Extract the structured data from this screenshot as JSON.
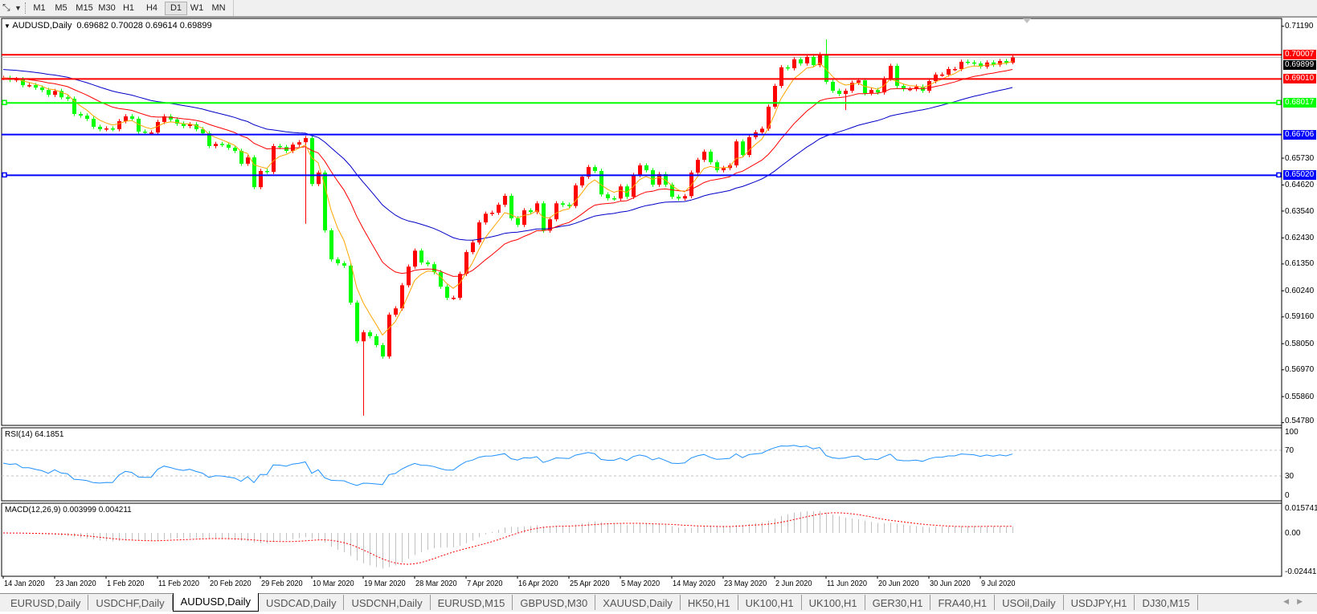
{
  "toolbar": {
    "timeframes": [
      "M1",
      "M5",
      "M15",
      "M30",
      "H1",
      "H4",
      "D1",
      "W1",
      "MN"
    ],
    "active": "D1",
    "tool_icon": "line-tool-icon",
    "dropdown_icon": "chevron-down-icon"
  },
  "chart": {
    "symbol": "AUDUSD,Daily",
    "ohlc": "0.69682 0.70028 0.69614 0.69899",
    "rsi_label": "RSI(14) 64.1851",
    "macd_label": "MACD(12,26,9) 0.003999 0.004211"
  },
  "chart_data": {
    "type": "candlestick",
    "colors": {
      "bull": "#ff0000",
      "bear": "#00ff00",
      "ma_fast": "#ffa500",
      "ma_mid": "#ff0000",
      "ma_slow": "#0000c8",
      "rsi": "#1e90ff",
      "macd_hist": "#c0c0c0",
      "macd_signal": "#ff0000"
    },
    "candles": {
      "close": [
        0.6905,
        0.6897,
        0.69,
        0.6875,
        0.6875,
        0.6865,
        0.6855,
        0.6835,
        0.6851,
        0.6825,
        0.6819,
        0.6756,
        0.6749,
        0.6736,
        0.6703,
        0.6693,
        0.6696,
        0.6693,
        0.6726,
        0.6746,
        0.6736,
        0.6683,
        0.6679,
        0.6679,
        0.6723,
        0.6746,
        0.6733,
        0.6716,
        0.6706,
        0.6713,
        0.6693,
        0.6676,
        0.6623,
        0.6632,
        0.6629,
        0.6616,
        0.6603,
        0.655,
        0.6576,
        0.6453,
        0.652,
        0.6516,
        0.6623,
        0.6619,
        0.6603,
        0.6629,
        0.6639,
        0.6656,
        0.6466,
        0.6513,
        0.6274,
        0.6154,
        0.6138,
        0.6128,
        0.5975,
        0.5815,
        0.5852,
        0.5836,
        0.5799,
        0.5752,
        0.5925,
        0.5951,
        0.6047,
        0.6124,
        0.619,
        0.6141,
        0.6134,
        0.6101,
        0.6041,
        0.5995,
        0.5995,
        0.6094,
        0.6184,
        0.6224,
        0.6307,
        0.6343,
        0.6347,
        0.638,
        0.6417,
        0.6324,
        0.6297,
        0.6357,
        0.635,
        0.6386,
        0.6273,
        0.632,
        0.6386,
        0.638,
        0.6375,
        0.646,
        0.6496,
        0.6536,
        0.652,
        0.6423,
        0.6407,
        0.6406,
        0.6456,
        0.6413,
        0.6503,
        0.6543,
        0.6523,
        0.6463,
        0.6507,
        0.6463,
        0.6413,
        0.6406,
        0.6416,
        0.6513,
        0.6566,
        0.66,
        0.6556,
        0.6523,
        0.6532,
        0.6543,
        0.6642,
        0.6586,
        0.666,
        0.668,
        0.6695,
        0.6786,
        0.6872,
        0.6949,
        0.6945,
        0.6982,
        0.6965,
        0.6992,
        0.6958,
        0.7002,
        0.6889,
        0.6852,
        0.6839,
        0.6852,
        0.6885,
        0.6895,
        0.6842,
        0.6855,
        0.6845,
        0.6902,
        0.6955,
        0.6872,
        0.6859,
        0.6859,
        0.6869,
        0.6852,
        0.6892,
        0.6919,
        0.6919,
        0.6942,
        0.6942,
        0.6972,
        0.6969,
        0.6965,
        0.6952,
        0.6969,
        0.696,
        0.6975,
        0.69682,
        0.69899
      ],
      "last_bar": {
        "open": 0.69682,
        "high": 0.70028,
        "low": 0.69614,
        "close": 0.69899
      },
      "wick_extremes": [
        {
          "bar": 47,
          "low": 0.6301
        },
        {
          "bar": 56,
          "low": 0.5507
        },
        {
          "bar": 128,
          "high": 0.7065
        },
        {
          "bar": 131,
          "low": 0.6772
        }
      ]
    },
    "price_axis": {
      "ylim": [
        0.5478,
        0.7119
      ],
      "ticks": [
        "0.71190",
        "0.65730",
        "0.64620",
        "0.63540",
        "0.62430",
        "0.61350",
        "0.60240",
        "0.59160",
        "0.58050",
        "0.56970",
        "0.55860",
        "0.54780"
      ]
    },
    "horizontal_levels": [
      {
        "price": "0.70007",
        "color": "#ff0000",
        "handles": false
      },
      {
        "price": "0.69010",
        "color": "#ff0000",
        "handles": false
      },
      {
        "price": "0.68017",
        "color": "#00ff00",
        "handles": true
      },
      {
        "price": "0.66706",
        "color": "#0000ff",
        "handles": false
      },
      {
        "price": "0.65020",
        "color": "#0000ff",
        "handles": true
      }
    ],
    "bid": {
      "price": "0.69899",
      "color": "#c0c0c0"
    },
    "x_tick_labels": [
      "14 Jan 2020",
      "23 Jan 2020",
      "1 Feb 2020",
      "11 Feb 2020",
      "20 Feb 2020",
      "29 Feb 2020",
      "10 Mar 2020",
      "19 Mar 2020",
      "28 Mar 2020",
      "7 Apr 2020",
      "16 Apr 2020",
      "25 Apr 2020",
      "5 May 2020",
      "14 May 2020",
      "23 May 2020",
      "2 Jun 2020",
      "11 Jun 2020",
      "20 Jun 2020",
      "30 Jun 2020",
      "9 Jul 2020"
    ],
    "rsi": {
      "ylim": [
        0,
        100
      ],
      "levels": [
        70,
        30
      ],
      "ticks": [
        "100",
        "70",
        "30",
        "0"
      ]
    },
    "macd": {
      "ylim": [
        -0.024412,
        0.015741
      ],
      "ticks": [
        "0.015741",
        "0.00",
        "-0.024412"
      ]
    }
  },
  "tabs": {
    "items": [
      "EURUSD,Daily",
      "USDCHF,Daily",
      "AUDUSD,Daily",
      "USDCAD,Daily",
      "USDCNH,Daily",
      "EURUSD,M15",
      "GBPUSD,M30",
      "XAUUSD,Daily",
      "HK50,H1",
      "UK100,H1",
      "UK100,H1",
      "GER30,H1",
      "FRA40,H1",
      "USOil,Daily",
      "USDJPY,H1",
      "DJ30,M15"
    ],
    "active_index": 2,
    "scroll_left": "◀",
    "scroll_right": "▶"
  }
}
